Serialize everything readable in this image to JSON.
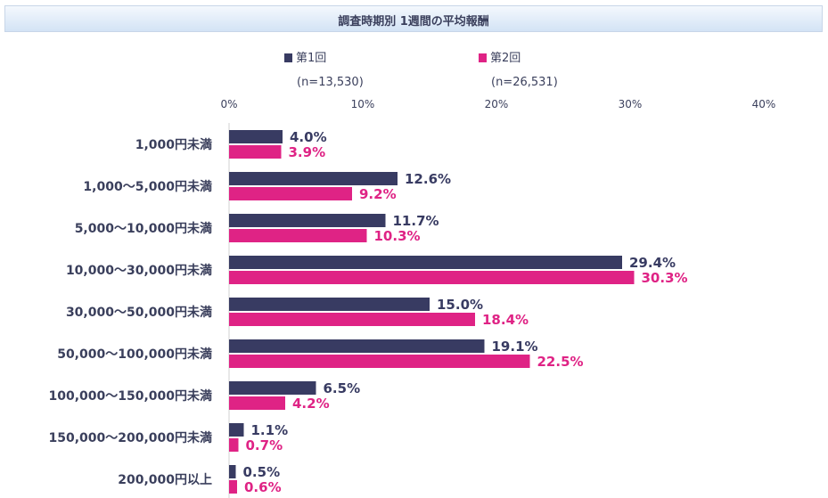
{
  "chart_data": {
    "type": "bar",
    "orientation": "horizontal",
    "title": "調査時期別 1週間の平均報酬",
    "categories": [
      "1,000円未満",
      "1,000～5,000円未満",
      "5,000～10,000円未満",
      "10,000～30,000円未満",
      "30,000～50,000円未満",
      "50,000～100,000円未満",
      "100,000～150,000円未満",
      "150,000～200,000円未満",
      "200,000円以上"
    ],
    "series": [
      {
        "name": "第1回",
        "note": "(n=13,530)",
        "color": "#383b62",
        "values": [
          4.0,
          12.6,
          11.7,
          29.4,
          15.0,
          19.1,
          6.5,
          1.1,
          0.5
        ]
      },
      {
        "name": "第2回",
        "note": "(n=26,531)",
        "color": "#df2385",
        "values": [
          3.9,
          9.2,
          10.3,
          30.3,
          18.4,
          22.5,
          4.2,
          0.7,
          0.6
        ]
      }
    ],
    "xlim": [
      0,
      40
    ],
    "xticks": [
      "0%",
      "10%",
      "20%",
      "30%",
      "40%"
    ],
    "legend": "top",
    "grid": false
  }
}
